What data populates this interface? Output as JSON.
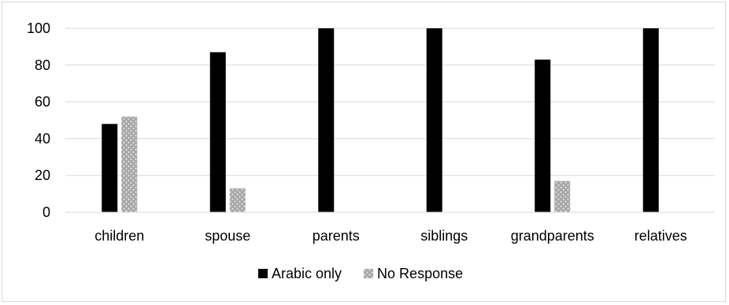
{
  "chart_data": {
    "type": "bar",
    "categories": [
      "children",
      "spouse",
      "parents",
      "siblings",
      "grandparents",
      "relatives"
    ],
    "series": [
      {
        "name": "Arabic only",
        "values": [
          48,
          87,
          100,
          100,
          83,
          100
        ],
        "color": "#000000",
        "pattern": "solid"
      },
      {
        "name": "No Response",
        "values": [
          52,
          13,
          0,
          0,
          17,
          0
        ],
        "color": "#a6a6a6",
        "pattern": "dotted"
      }
    ],
    "ylim": [
      0,
      100
    ],
    "yticks": [
      "0",
      "20",
      "40",
      "60",
      "80",
      "100"
    ],
    "grid": true,
    "legend": "bottom"
  }
}
